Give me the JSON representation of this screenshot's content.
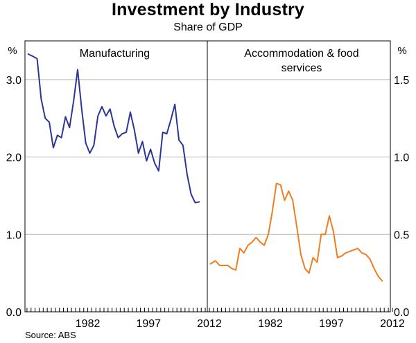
{
  "chart_data": {
    "type": "line",
    "title": "Investment by Industry",
    "subtitle": "Share of GDP",
    "source": "Source: ABS",
    "ylabel_left": "%",
    "ylabel_right": "%",
    "x_ticks": [
      "1982",
      "1997",
      "2012"
    ],
    "panels": [
      {
        "name": "Manufacturing",
        "title_lines": [
          "Manufacturing"
        ],
        "axis": "left",
        "ylim": [
          0,
          3.5
        ],
        "yticks": [
          "0.0",
          "1.0",
          "2.0",
          "3.0"
        ],
        "ytick_values": [
          0,
          1,
          2,
          3
        ],
        "color": "#2b3593",
        "x": [
          1967.8,
          1969,
          1970,
          1971,
          1972,
          1973,
          1974,
          1975,
          1976,
          1977,
          1978,
          1979,
          1980,
          1981,
          1982,
          1983,
          1984,
          1985,
          1986,
          1987,
          1988,
          1989,
          1990,
          1991,
          1992,
          1993,
          1994,
          1995,
          1996,
          1997,
          1998,
          1999,
          2000,
          2001,
          2002,
          2003,
          2004,
          2005,
          2006,
          2007,
          2008,
          2009,
          2010
        ],
        "values": [
          3.33,
          3.3,
          3.27,
          2.75,
          2.5,
          2.45,
          2.12,
          2.28,
          2.25,
          2.52,
          2.38,
          2.72,
          3.13,
          2.62,
          2.18,
          2.05,
          2.15,
          2.53,
          2.65,
          2.53,
          2.62,
          2.4,
          2.25,
          2.3,
          2.32,
          2.58,
          2.35,
          2.05,
          2.2,
          1.95,
          2.1,
          1.92,
          1.82,
          2.32,
          2.3,
          2.48,
          2.68,
          2.22,
          2.15,
          1.78,
          1.52,
          1.41,
          1.42
        ]
      },
      {
        "name": "Accommodation & food services",
        "title_lines": [
          "Accommodation & food",
          "services"
        ],
        "axis": "right",
        "ylim": [
          0,
          1.75
        ],
        "yticks": [
          "0.0",
          "0.5",
          "1.0",
          "1.5"
        ],
        "ytick_values": [
          0,
          0.5,
          1.0,
          1.5
        ],
        "color": "#f07d1f",
        "x": [
          1967.8,
          1969,
          1970,
          1971,
          1972,
          1973,
          1974,
          1975,
          1976,
          1977,
          1978,
          1979,
          1980,
          1981,
          1982,
          1983,
          1984,
          1985,
          1986,
          1987,
          1988,
          1989,
          1990,
          1991,
          1992,
          1993,
          1994,
          1995,
          1996,
          1997,
          1998,
          1999,
          2000,
          2001,
          2002,
          2003,
          2004,
          2005,
          2006,
          2007,
          2008,
          2009,
          2010
        ],
        "values": [
          0.31,
          0.33,
          0.3,
          0.3,
          0.3,
          0.28,
          0.27,
          0.41,
          0.38,
          0.43,
          0.45,
          0.48,
          0.45,
          0.43,
          0.5,
          0.65,
          0.83,
          0.82,
          0.72,
          0.78,
          0.72,
          0.55,
          0.37,
          0.28,
          0.25,
          0.35,
          0.32,
          0.5,
          0.5,
          0.62,
          0.52,
          0.35,
          0.36,
          0.38,
          0.39,
          0.4,
          0.41,
          0.38,
          0.37,
          0.34,
          0.28,
          0.23,
          0.2
        ]
      }
    ]
  }
}
